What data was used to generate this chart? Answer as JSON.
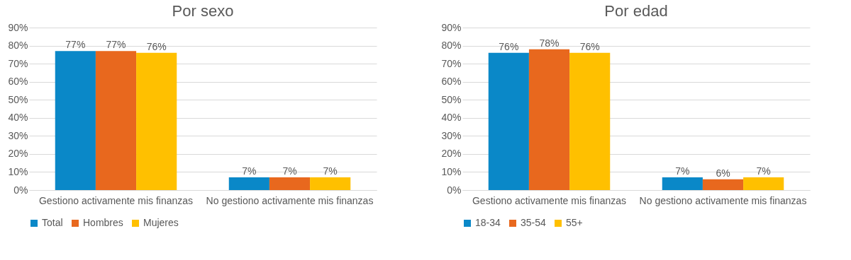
{
  "chart_data": [
    {
      "type": "bar",
      "title": "Por sexo",
      "categories": [
        "Gestiono activamente mis finanzas",
        "No gestiono activamente mis finanzas"
      ],
      "series": [
        {
          "name": "Total",
          "color": "#0a88c8",
          "values": [
            77,
            7
          ],
          "value_labels": [
            "77%",
            "7%"
          ]
        },
        {
          "name": "Hombres",
          "color": "#e8681e",
          "values": [
            77,
            7
          ],
          "value_labels": [
            "77%",
            "7%"
          ]
        },
        {
          "name": "Mujeres",
          "color": "#ffc000",
          "values": [
            76,
            7
          ],
          "value_labels": [
            "76%",
            "7%"
          ]
        }
      ],
      "ylim": [
        0,
        90
      ],
      "yticks": [
        {
          "value": 0,
          "label": "0%"
        },
        {
          "value": 10,
          "label": "10%"
        },
        {
          "value": 20,
          "label": "20%"
        },
        {
          "value": 30,
          "label": "30%"
        },
        {
          "value": 40,
          "label": "40%"
        },
        {
          "value": 50,
          "label": "50%"
        },
        {
          "value": 60,
          "label": "60%"
        },
        {
          "value": 70,
          "label": "70%"
        },
        {
          "value": 80,
          "label": "80%"
        },
        {
          "value": 90,
          "label": "90%"
        }
      ],
      "grid": "y",
      "legend": "bottom"
    },
    {
      "type": "bar",
      "title": "Por edad",
      "categories": [
        "Gestiono activamente mis finanzas",
        "No gestiono activamente mis finanzas"
      ],
      "series": [
        {
          "name": "18-34",
          "color": "#0a88c8",
          "values": [
            76,
            7
          ],
          "value_labels": [
            "76%",
            "7%"
          ]
        },
        {
          "name": "35-54",
          "color": "#e8681e",
          "values": [
            78,
            6
          ],
          "value_labels": [
            "78%",
            "6%"
          ]
        },
        {
          "name": "55+",
          "color": "#ffc000",
          "values": [
            76,
            7
          ],
          "value_labels": [
            "76%",
            "7%"
          ]
        }
      ],
      "ylim": [
        0,
        90
      ],
      "yticks": [
        {
          "value": 0,
          "label": "0%"
        },
        {
          "value": 10,
          "label": "10%"
        },
        {
          "value": 20,
          "label": "20%"
        },
        {
          "value": 30,
          "label": "30%"
        },
        {
          "value": 40,
          "label": "40%"
        },
        {
          "value": 50,
          "label": "50%"
        },
        {
          "value": 60,
          "label": "60%"
        },
        {
          "value": 70,
          "label": "70%"
        },
        {
          "value": 80,
          "label": "80%"
        },
        {
          "value": 90,
          "label": "90%"
        }
      ],
      "grid": "y",
      "legend": "bottom"
    }
  ]
}
